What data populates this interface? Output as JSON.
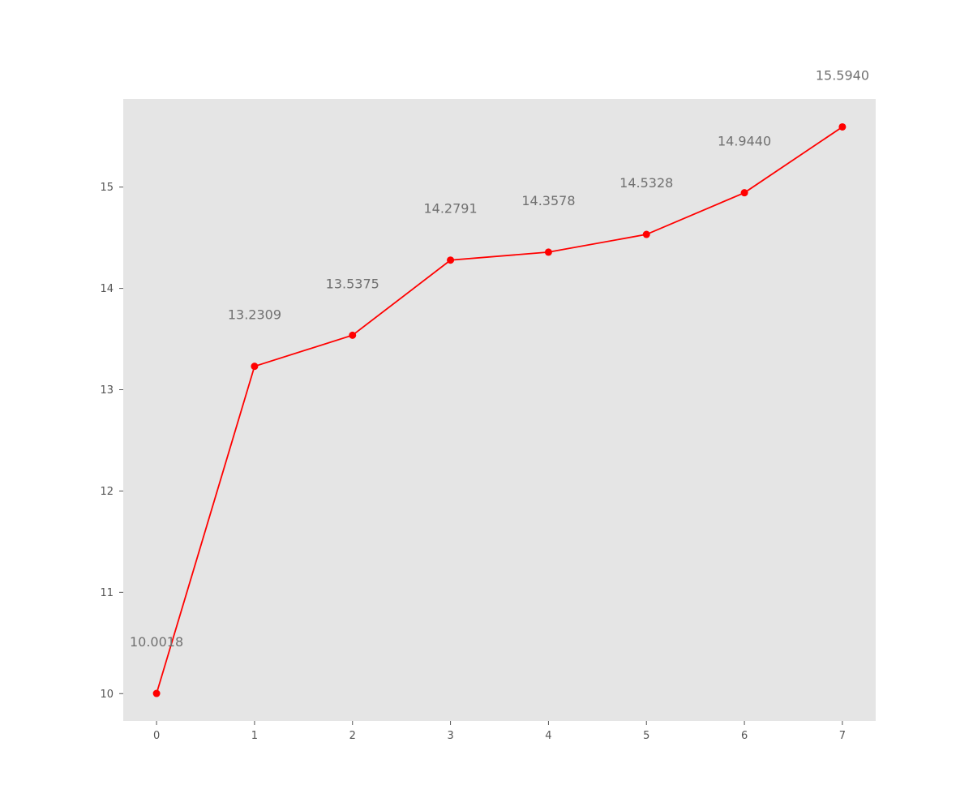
{
  "chart_data": {
    "type": "line",
    "title": "",
    "xlabel": "",
    "ylabel": "",
    "x": [
      0,
      1,
      2,
      3,
      4,
      5,
      6,
      7
    ],
    "series": [
      {
        "values": [
          10.0018,
          13.2309,
          13.5375,
          14.2791,
          14.3578,
          14.5328,
          14.944,
          15.594
        ],
        "color": "#ff0000",
        "marker": "circle"
      }
    ],
    "data_labels": [
      "10.0018",
      "13.2309",
      "13.5375",
      "14.2791",
      "14.3578",
      "14.5328",
      "14.9440",
      "15.5940"
    ],
    "xticks": [
      "0",
      "1",
      "2",
      "3",
      "4",
      "5",
      "6",
      "7"
    ],
    "yticks": [
      "10",
      "11",
      "12",
      "13",
      "14",
      "15"
    ],
    "xlim": [
      -0.34,
      7.34
    ],
    "ylim": [
      9.73,
      15.87
    ],
    "grid": false,
    "legend": false,
    "background_color": "#e5e5e5",
    "label_color": "#707070"
  }
}
